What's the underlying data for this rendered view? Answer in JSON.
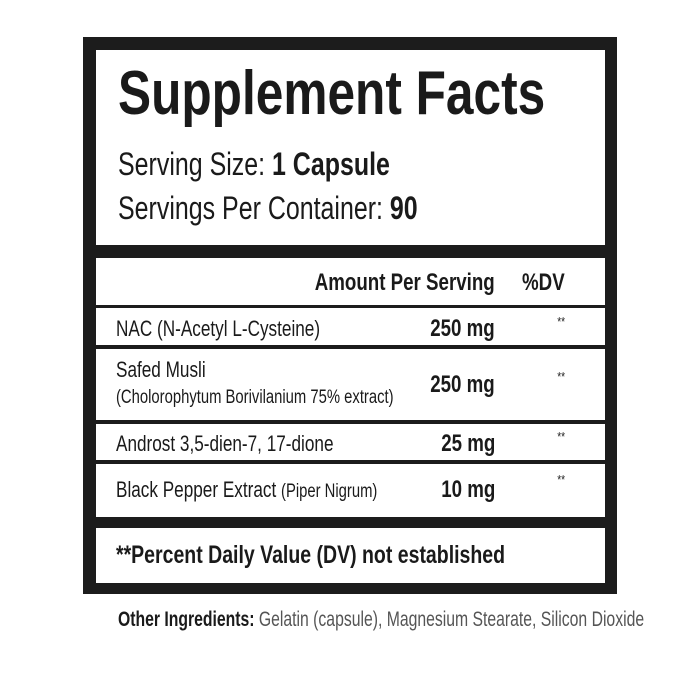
{
  "title": "Supplement Facts",
  "serving_size_label": "Serving Size:",
  "serving_size_value": "1 Capsule",
  "servings_label": "Servings Per Container:",
  "servings_value": "90",
  "header": {
    "amount": "Amount Per Serving",
    "dv": "%DV"
  },
  "rows": [
    {
      "name": "NAC (N-Acetyl L-Cysteine)",
      "amount": "250 mg",
      "dv": "**"
    },
    {
      "name": "Safed Musli",
      "sub": "(Cholorophytum Borivilanium 75% extract)",
      "amount": "250 mg",
      "dv": "**"
    },
    {
      "name": "Androst 3,5-dien-7, 17-dione",
      "amount": "25 mg",
      "dv": "**"
    },
    {
      "name": "Black Pepper Extract",
      "sub": "(Piper Nigrum)",
      "amount": "10 mg",
      "dv": "**"
    }
  ],
  "footnote": "**Percent Daily Value (DV) not established",
  "other_label": "Other Ingredients:",
  "other_value": "Gelatin (capsule), Magnesium Stearate, Silicon Dioxide"
}
